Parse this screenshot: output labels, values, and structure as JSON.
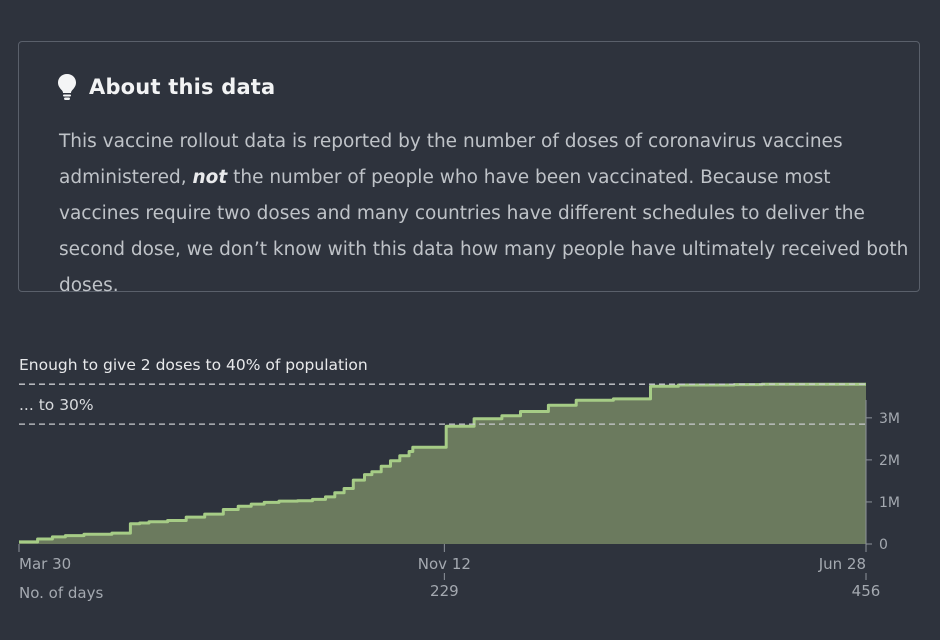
{
  "info": {
    "title": "About this data",
    "body_pre": "This vaccine rollout data is reported by the number of doses of coronavirus vaccines administered, ",
    "body_em": "not",
    "body_post": " the number of people who have been vaccinated. Because most vaccines require two doses and many countries have different schedules to deliver the second dose, we don’t know with this data how many people have ultimately received both doses."
  },
  "colors": {
    "background": "#2e333d",
    "area_fill": "#6b7a5e",
    "area_line": "#a6cc86",
    "dashed_line": "#c9cbcf"
  },
  "chart_data": {
    "type": "area",
    "x_axis": {
      "day_start": 0,
      "day_end": 456,
      "ticks": [
        {
          "day": 0,
          "label": "Mar 30",
          "days": ""
        },
        {
          "day": 229,
          "label": "Nov 12",
          "days": "229"
        },
        {
          "day": 456,
          "label": "Jun 28",
          "days": "456"
        }
      ],
      "days_caption": "No. of days"
    },
    "y_axis": {
      "ylim": [
        0,
        3900000
      ],
      "ticks": [
        {
          "value": 0,
          "label": "0"
        },
        {
          "value": 1000000,
          "label": "1M"
        },
        {
          "value": 2000000,
          "label": "2M"
        },
        {
          "value": 3000000,
          "label": "3M"
        }
      ]
    },
    "reference_lines": [
      {
        "value": 3800000,
        "label": "Enough to give 2 doses to 40% of population"
      },
      {
        "value": 2850000,
        "label": "... to 30%"
      }
    ],
    "x": [
      0,
      10,
      18,
      25,
      35,
      50,
      60,
      65,
      70,
      80,
      90,
      100,
      110,
      118,
      125,
      132,
      140,
      150,
      158,
      165,
      170,
      175,
      180,
      186,
      190,
      195,
      200,
      205,
      210,
      212,
      225,
      230,
      245,
      260,
      270,
      285,
      300,
      320,
      340,
      340,
      355,
      375,
      385,
      400,
      420,
      440,
      456
    ],
    "y": [
      50000,
      120000,
      170000,
      200000,
      230000,
      260000,
      480000,
      500000,
      530000,
      560000,
      640000,
      710000,
      820000,
      900000,
      950000,
      990000,
      1020000,
      1030000,
      1060000,
      1120000,
      1220000,
      1320000,
      1520000,
      1650000,
      1720000,
      1850000,
      1980000,
      2100000,
      2200000,
      2300000,
      2300000,
      2800000,
      2980000,
      3050000,
      3150000,
      3300000,
      3420000,
      3450000,
      3450000,
      3750000,
      3780000,
      3780000,
      3790000,
      3800000,
      3800000,
      3800000,
      3800000
    ]
  }
}
